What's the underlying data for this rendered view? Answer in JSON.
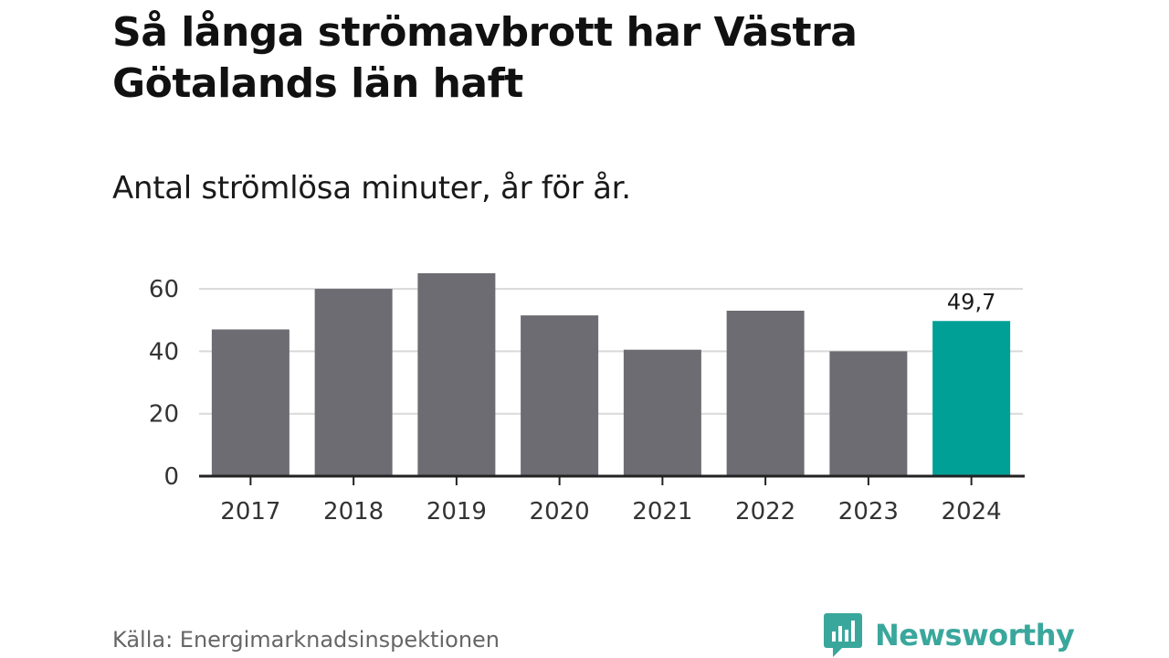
{
  "chart_data": {
    "type": "bar",
    "title": "Så långa strömavbrott har Västra Götalands län haft",
    "subtitle": "Antal strömlösa minuter, år för år.",
    "categories": [
      "2017",
      "2018",
      "2019",
      "2020",
      "2021",
      "2022",
      "2023",
      "2024"
    ],
    "values": [
      47,
      60,
      65,
      51.5,
      40.5,
      53,
      40,
      49.7
    ],
    "highlight_index": 7,
    "data_labels": [
      {
        "index": 7,
        "text": "49,7"
      }
    ],
    "y_ticks": [
      0,
      20,
      40,
      60
    ],
    "ylim": [
      0,
      65
    ],
    "grid": true,
    "colors": {
      "bar": "#6d6c72",
      "highlight": "#00a096",
      "grid": "#d9d9d9",
      "axis": "#222222"
    }
  },
  "source": "Källa: Energimarknadsinspektionen",
  "brand": {
    "name": "Newsworthy",
    "color": "#3aa79c"
  }
}
